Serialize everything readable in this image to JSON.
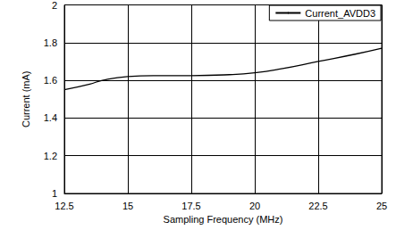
{
  "chart_data": {
    "type": "line",
    "x_label": "Sampling Frequency (MHz)",
    "y_label": "Current (mA)",
    "series": [
      {
        "name": "Current_AVDD3",
        "color": "#000000",
        "x": [
          12.5,
          13.5,
          14,
          15,
          16,
          17.5,
          19,
          20,
          21,
          22.5,
          24,
          25
        ],
        "values": [
          1.55,
          1.58,
          1.6,
          1.62,
          1.625,
          1.625,
          1.63,
          1.64,
          1.66,
          1.7,
          1.74,
          1.77
        ]
      }
    ],
    "xlim": [
      12.5,
      25
    ],
    "xticks": [
      12.5,
      15,
      17.5,
      20,
      22.5,
      25
    ],
    "ylim": [
      1,
      2
    ],
    "yticks": [
      1,
      1.2,
      1.4,
      1.6,
      1.8,
      2
    ],
    "grid": true,
    "legend": "upper right"
  }
}
